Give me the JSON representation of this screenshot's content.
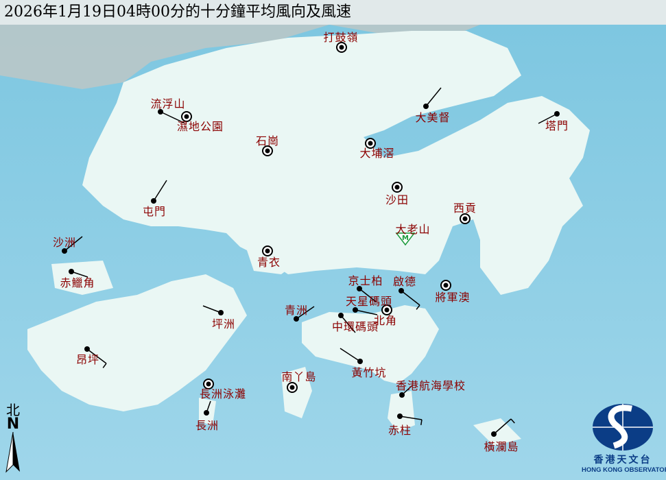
{
  "title": "2026年1月19日04時00分的十分鐘平均風向及風速",
  "colors": {
    "sea": "#8fcfe6",
    "land": "#eaf7f4",
    "label": "#8b0000",
    "missing_triangle": "#1a9a3a",
    "logo": "#0b3d86"
  },
  "stations": [
    {
      "name": "打鼓嶺",
      "symbol": "calm-circle"
    },
    {
      "name": "流浮山",
      "symbol": "wind-barb"
    },
    {
      "name": "濕地公園",
      "symbol": "calm-circle"
    },
    {
      "name": "石崗",
      "symbol": "calm-circle"
    },
    {
      "name": "大美督",
      "symbol": "wind-barb"
    },
    {
      "name": "塔門",
      "symbol": "wind-barb"
    },
    {
      "name": "大埔滘",
      "symbol": "calm-circle"
    },
    {
      "name": "沙田",
      "symbol": "calm-circle"
    },
    {
      "name": "屯門",
      "symbol": "wind-barb"
    },
    {
      "name": "西貢",
      "symbol": "calm-circle"
    },
    {
      "name": "大老山",
      "symbol": "missing-triangle"
    },
    {
      "name": "沙洲",
      "symbol": "wind-barb"
    },
    {
      "name": "青衣",
      "symbol": "calm-circle"
    },
    {
      "name": "赤鱲角",
      "symbol": "wind-barb"
    },
    {
      "name": "京士柏",
      "symbol": "wind-barb"
    },
    {
      "name": "啟德",
      "symbol": "wind-barb"
    },
    {
      "name": "將軍澳",
      "symbol": "calm-circle"
    },
    {
      "name": "天星碼頭",
      "symbol": "wind-barb"
    },
    {
      "name": "北角",
      "symbol": "calm-circle"
    },
    {
      "name": "青洲",
      "symbol": "wind-barb"
    },
    {
      "name": "坪洲",
      "symbol": "wind-barb"
    },
    {
      "name": "中環碼頭",
      "symbol": "wind-barb"
    },
    {
      "name": "昂坪",
      "symbol": "wind-barb"
    },
    {
      "name": "黃竹坑",
      "symbol": "wind-barb"
    },
    {
      "name": "南丫島",
      "symbol": "calm-circle"
    },
    {
      "name": "香港航海學校",
      "symbol": "wind-barb"
    },
    {
      "name": "長洲泳灘",
      "symbol": "calm-circle"
    },
    {
      "name": "長洲",
      "symbol": "wind-barb"
    },
    {
      "name": "赤柱",
      "symbol": "wind-barb"
    },
    {
      "name": "橫瀾島",
      "symbol": "wind-barb"
    }
  ],
  "missing_mark": "M",
  "north": {
    "chinese": "北",
    "letter": "N"
  },
  "logo": {
    "chinese": "香港天文台",
    "english": "HONG KONG OBSERVATORY"
  }
}
